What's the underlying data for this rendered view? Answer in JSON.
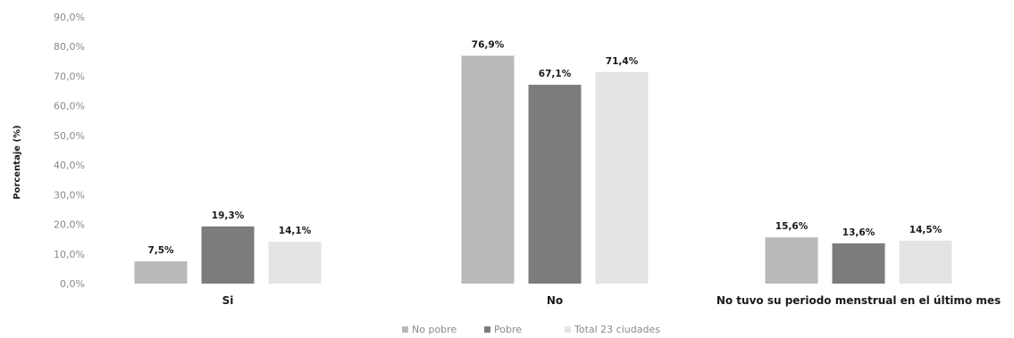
{
  "chart_data": {
    "type": "bar",
    "ylabel": "Porcentaje (%)",
    "ylim": [
      0,
      90
    ],
    "yticks": [
      "0,0%",
      "10,0%",
      "20,0%",
      "30,0%",
      "40,0%",
      "50,0%",
      "60,0%",
      "70,0%",
      "80,0%",
      "90,0%"
    ],
    "categories": [
      "Si",
      "No",
      "No tuvo su periodo menstrual en el último mes"
    ],
    "series": [
      {
        "name": "No pobre",
        "values": [
          7.5,
          76.9,
          15.6
        ],
        "labels": [
          "7,5%",
          "76,9%",
          "15,6%"
        ],
        "color": "#b9b9b9"
      },
      {
        "name": "Pobre",
        "values": [
          19.3,
          67.1,
          13.6
        ],
        "labels": [
          "19,3%",
          "67,1%",
          "13,6%"
        ],
        "color": "#7c7c7c"
      },
      {
        "name": "Total 23 ciudades",
        "values": [
          14.1,
          71.4,
          14.5
        ],
        "labels": [
          "14,1%",
          "71,4%",
          "14,5%"
        ],
        "color": "#e4e4e4"
      }
    ],
    "legend_position": "bottom",
    "grid": false
  }
}
